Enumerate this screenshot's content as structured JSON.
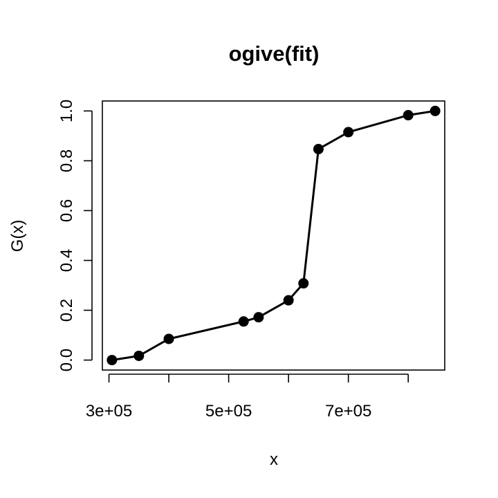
{
  "chart_data": {
    "type": "line",
    "title": "ogive(fit)",
    "xlabel": "x",
    "ylabel": "G(x)",
    "xlim": [
      289000,
      861000
    ],
    "ylim": [
      -0.04,
      1.04
    ],
    "x_ticks": [
      300000,
      400000,
      500000,
      600000,
      700000,
      800000
    ],
    "x_tick_labels": [
      "3e+05",
      "",
      "5e+05",
      "",
      "7e+05",
      ""
    ],
    "y_ticks": [
      0.0,
      0.2,
      0.4,
      0.6,
      0.8,
      1.0
    ],
    "y_tick_labels": [
      "0.0",
      "0.2",
      "0.4",
      "0.6",
      "0.8",
      "1.0"
    ],
    "grid": false,
    "legend": "none",
    "series": [
      {
        "x": [
          305000,
          350000,
          400000,
          525000,
          550000,
          600000,
          625000,
          650000,
          700000,
          800000,
          845000
        ],
        "y": [
          0.0,
          0.017,
          0.085,
          0.155,
          0.172,
          0.24,
          0.308,
          0.847,
          0.915,
          0.983,
          1.0
        ],
        "color": "#000000",
        "marker": "circle"
      }
    ]
  }
}
